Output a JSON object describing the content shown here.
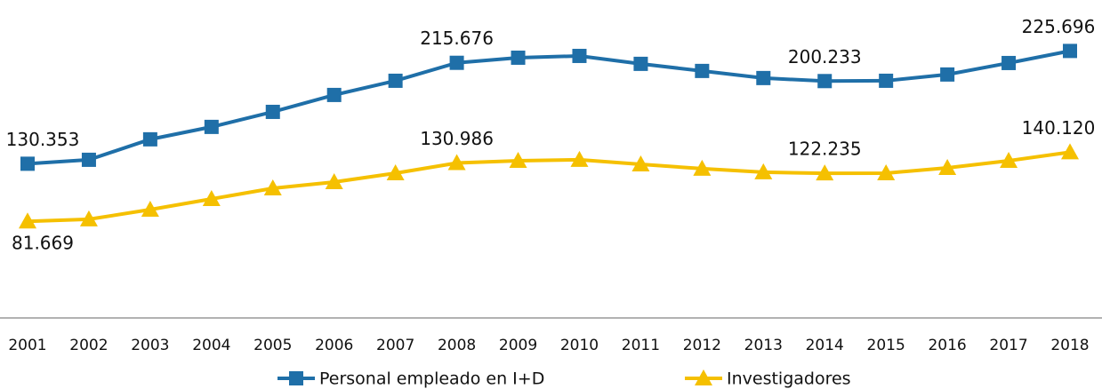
{
  "chart_data": {
    "type": "line",
    "categories": [
      "2001",
      "2002",
      "2003",
      "2004",
      "2005",
      "2006",
      "2007",
      "2008",
      "2009",
      "2010",
      "2011",
      "2012",
      "2013",
      "2014",
      "2015",
      "2016",
      "2017",
      "2018"
    ],
    "ylim": [
      0,
      250000
    ],
    "series": [
      {
        "name": "Personal empleado en I+D",
        "color": "#1f6fa8",
        "marker": "square",
        "values": [
          130353,
          133700,
          151000,
          161500,
          174200,
          188500,
          200500,
          215676,
          220000,
          221500,
          214800,
          208800,
          202800,
          200233,
          200500,
          205800,
          215500,
          225696
        ],
        "value_labels": [
          "130.353",
          null,
          null,
          null,
          null,
          null,
          null,
          "215.676",
          null,
          null,
          null,
          null,
          null,
          "200.233",
          null,
          null,
          null,
          "225.696"
        ]
      },
      {
        "name": "Investigadores",
        "color": "#f5c000",
        "marker": "triangle",
        "values": [
          81669,
          83400,
          91600,
          100600,
          109600,
          114900,
          122400,
          130986,
          132900,
          133700,
          129900,
          126200,
          123200,
          122235,
          122400,
          126900,
          132900,
          140120
        ],
        "value_labels": [
          "81.669",
          null,
          null,
          null,
          null,
          null,
          null,
          "130.986",
          null,
          null,
          null,
          null,
          null,
          "122.235",
          null,
          null,
          null,
          "140.120"
        ]
      }
    ]
  }
}
